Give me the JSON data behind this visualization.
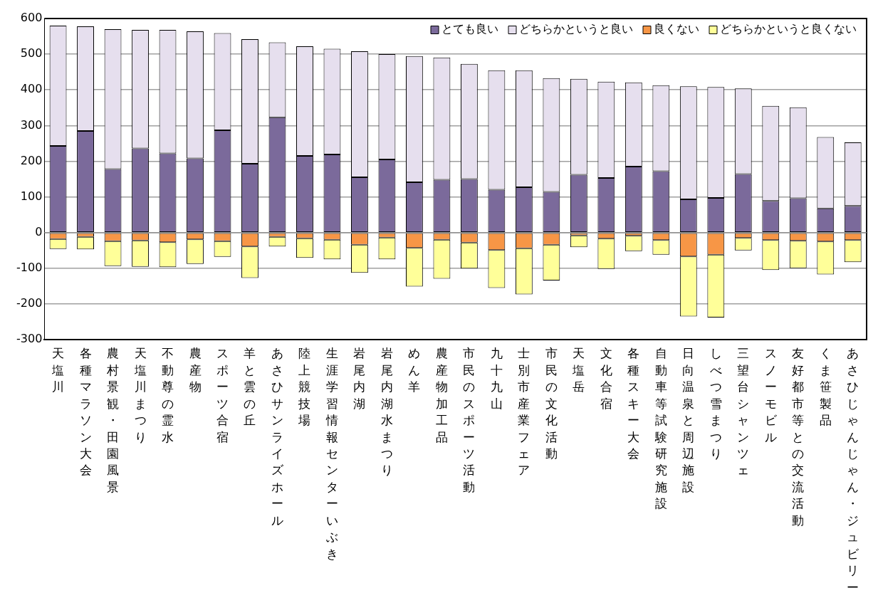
{
  "chart_data": {
    "type": "bar",
    "stacked": true,
    "categories": [
      "天塩川",
      "各種マラソン大会",
      "農村景観・田園風景",
      "天塩川まつり",
      "不動尊の霊水",
      "農産物",
      "スポーツ合宿",
      "羊と雲の丘",
      "あさひサンライズホール",
      "陸上競技場",
      "生涯学習情報センターいぶき",
      "岩尾内湖",
      "岩尾内湖水まつり",
      "めん羊",
      "農産物加工品",
      "市民のスポーツ活動",
      "九十九山",
      "士別市産業フェア",
      "市民の文化活動",
      "天塩岳",
      "文化合宿",
      "各種スキー大会",
      "自動車等試験研究施設",
      "日向温泉と周辺施設",
      "しべつ雪まつり",
      "三望台シャンツェ",
      "スノーモビル",
      "友好都市等との交流活動",
      "くま笹製品",
      "あさひじゃんじゃん・ジュビリー"
    ],
    "series": [
      {
        "name": "とても良い",
        "color": "#7b6a9b",
        "values": [
          243,
          285,
          178,
          236,
          222,
          208,
          287,
          193,
          323,
          215,
          219,
          155,
          205,
          141,
          148,
          150,
          120,
          127,
          114,
          162,
          153,
          185,
          172,
          93,
          97,
          164,
          89,
          96,
          68,
          75
        ]
      },
      {
        "name": "どちらかというと良い",
        "color": "#e6dfee",
        "values": [
          337,
          293,
          392,
          332,
          346,
          356,
          272,
          349,
          210,
          307,
          296,
          353,
          295,
          354,
          343,
          323,
          335,
          328,
          319,
          269,
          270,
          236,
          241,
          317,
          311,
          240,
          266,
          255,
          200,
          178
        ]
      },
      {
        "name": "良くない",
        "color": "#f79646",
        "values": [
          -18,
          -12,
          -24,
          -22,
          -27,
          -19,
          -24,
          -39,
          -12,
          -16,
          -20,
          -34,
          -14,
          -43,
          -20,
          -28,
          -49,
          -44,
          -34,
          -8,
          -17,
          -9,
          -21,
          -67,
          -62,
          -15,
          -21,
          -23,
          -25,
          -21
        ]
      },
      {
        "name": "どちらかというと良くない",
        "color": "#ffff99",
        "values": [
          -28,
          -35,
          -70,
          -74,
          -70,
          -69,
          -44,
          -88,
          -27,
          -55,
          -55,
          -79,
          -61,
          -108,
          -109,
          -73,
          -106,
          -129,
          -100,
          -33,
          -85,
          -43,
          -41,
          -168,
          -176,
          -35,
          -84,
          -77,
          -92,
          -62
        ]
      }
    ],
    "ylim": [
      -300,
      600
    ],
    "yticks": [
      -300,
      -200,
      -100,
      0,
      100,
      200,
      300,
      400,
      500,
      600
    ],
    "grid": "y",
    "legend": "top right"
  }
}
